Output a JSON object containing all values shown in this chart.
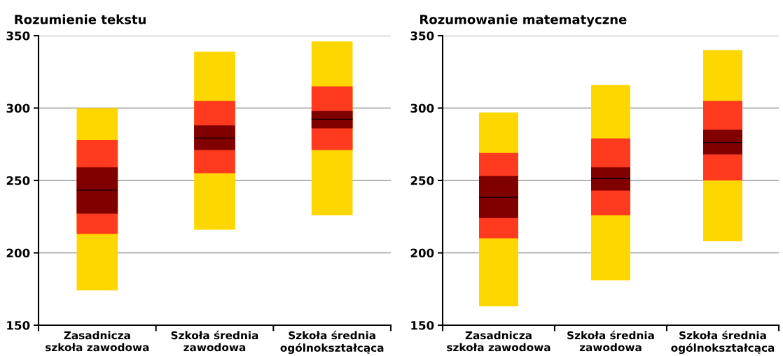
{
  "chart_data": [
    {
      "type": "bar",
      "title": "Rozumienie tekstu",
      "categories": [
        "Zasadnicza\nszkoła zawodowa",
        "Szkoła średnia\nzawodowa",
        "Szkoła średnia\nogólnokształcąca"
      ],
      "series": [
        {
          "color": "#ffd700",
          "base": [
            174,
            216,
            226
          ],
          "values": [
            126,
            123,
            120
          ]
        },
        {
          "color": "#ff3a1e",
          "base": [
            213,
            255,
            271
          ],
          "values": [
            65,
            50,
            44
          ]
        },
        {
          "color": "#800000",
          "base": [
            227,
            271,
            286
          ],
          "values": [
            32,
            17,
            12
          ]
        },
        {
          "color": "#000000",
          "base": [
            243,
            279,
            292
          ],
          "values": [
            0.6,
            0.6,
            0.6
          ]
        }
      ],
      "ylim": [
        150,
        350
      ],
      "yticks": [
        150,
        200,
        250,
        300,
        350
      ],
      "grid": "y"
    },
    {
      "type": "bar",
      "title": "Rozumowanie matematyczne",
      "categories": [
        "Zasadnicza\nszkoła zawodowa",
        "Szkoła średnia\nzawodowa",
        "Szkoła średnia\nogólnokształcąca"
      ],
      "series": [
        {
          "color": "#ffd700",
          "base": [
            163,
            181,
            208
          ],
          "values": [
            134,
            135,
            132
          ]
        },
        {
          "color": "#ff3a1e",
          "base": [
            210,
            226,
            250
          ],
          "values": [
            59,
            53,
            55
          ]
        },
        {
          "color": "#800000",
          "base": [
            224,
            243,
            268
          ],
          "values": [
            29,
            16,
            17
          ]
        },
        {
          "color": "#000000",
          "base": [
            238,
            251,
            276
          ],
          "values": [
            0.6,
            0.6,
            0.6
          ]
        }
      ],
      "ylim": [
        150,
        350
      ],
      "yticks": [
        150,
        200,
        250,
        300,
        350
      ],
      "grid": "y"
    }
  ]
}
